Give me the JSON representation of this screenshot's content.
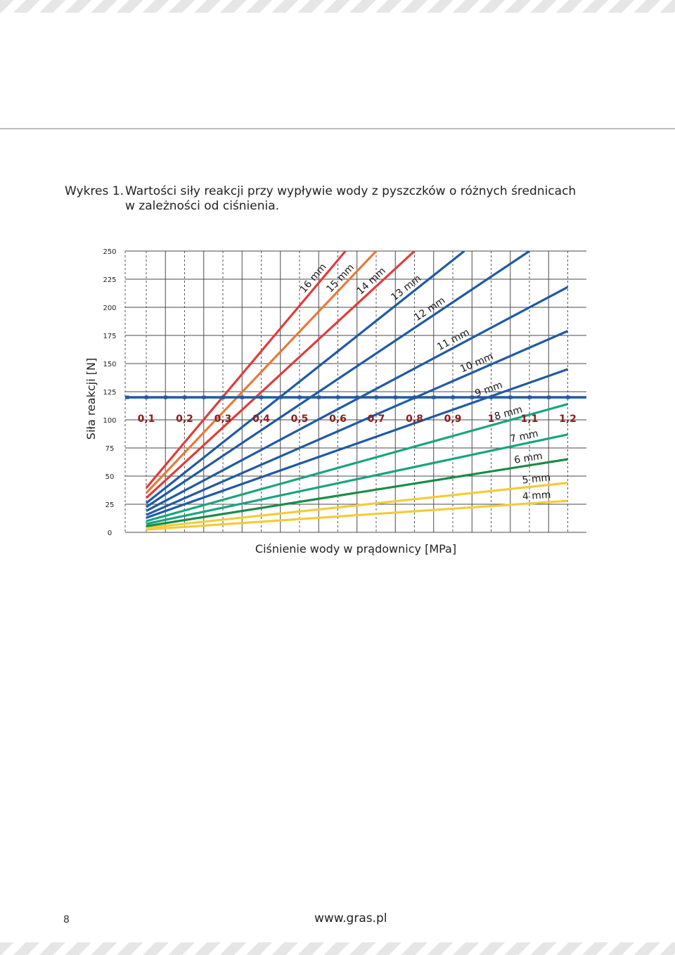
{
  "caption": {
    "number": "Wykres 1.",
    "line1": "Wartości siły reakcji przy wypływie wody z pyszczków o różnych średnicach",
    "line2": "w zależności od ciśnienia."
  },
  "chart_data": {
    "type": "line",
    "xlabel": "Ciśnienie wody w prądownicy [MPa]",
    "ylabel": "Siła reakcji [N]",
    "xlim": [
      0.1,
      1.2
    ],
    "ylim": [
      0,
      250
    ],
    "x_ticks": [
      "0,1",
      "0,2",
      "0,3",
      "0,4",
      "0,5",
      "0,6",
      "0,7",
      "0,8",
      "0,9",
      "1",
      "1,1",
      "1,2"
    ],
    "y_ticks": [
      "0",
      "25",
      "50",
      "75",
      "100",
      "125",
      "150",
      "175",
      "200",
      "225",
      "250"
    ],
    "grid": true,
    "series": [
      {
        "name": "4 mm",
        "color": "#f2cc3a",
        "x": [
          0.1,
          1.2
        ],
        "y": [
          2.5,
          28
        ]
      },
      {
        "name": "5 mm",
        "color": "#f2cc3a",
        "x": [
          0.1,
          1.2
        ],
        "y": [
          4,
          44
        ]
      },
      {
        "name": "6 mm",
        "color": "#1a8c46",
        "x": [
          0.1,
          1.2
        ],
        "y": [
          5.5,
          65
        ]
      },
      {
        "name": "7 mm",
        "color": "#18a57f",
        "x": [
          0.1,
          1.2
        ],
        "y": [
          7.5,
          87
        ]
      },
      {
        "name": "8 mm",
        "color": "#18a57f",
        "x": [
          0.1,
          1.2
        ],
        "y": [
          10,
          114
        ]
      },
      {
        "name": "9 mm",
        "color": "#1f5aa5",
        "x": [
          0.1,
          1.2
        ],
        "y": [
          13,
          145
        ]
      },
      {
        "name": "10 mm",
        "color": "#1f5aa5",
        "x": [
          0.1,
          1.2
        ],
        "y": [
          15.5,
          179
        ]
      },
      {
        "name": "11 mm",
        "color": "#1f5aa5",
        "x": [
          0.1,
          1.2
        ],
        "y": [
          19,
          218
        ]
      },
      {
        "name": "12 mm",
        "color": "#1f5aa5",
        "x": [
          0.1,
          1.1
        ],
        "y": [
          22.5,
          250
        ]
      },
      {
        "name": "13 mm",
        "color": "#1f5aa5",
        "x": [
          0.1,
          0.93
        ],
        "y": [
          26,
          250
        ]
      },
      {
        "name": "14 mm",
        "color": "#e03c3c",
        "x": [
          0.1,
          0.8
        ],
        "y": [
          30.5,
          250
        ]
      },
      {
        "name": "15 mm",
        "color": "#e8793a",
        "x": [
          0.1,
          0.7
        ],
        "y": [
          35,
          250
        ]
      },
      {
        "name": "16 mm",
        "color": "#e03c3c",
        "x": [
          0.1,
          0.62
        ],
        "y": [
          39.5,
          250
        ]
      }
    ],
    "reference_line": {
      "y": 120,
      "color": "#1f5aa5"
    }
  },
  "footer": {
    "page_number": "8",
    "website": "www.gras.pl"
  }
}
